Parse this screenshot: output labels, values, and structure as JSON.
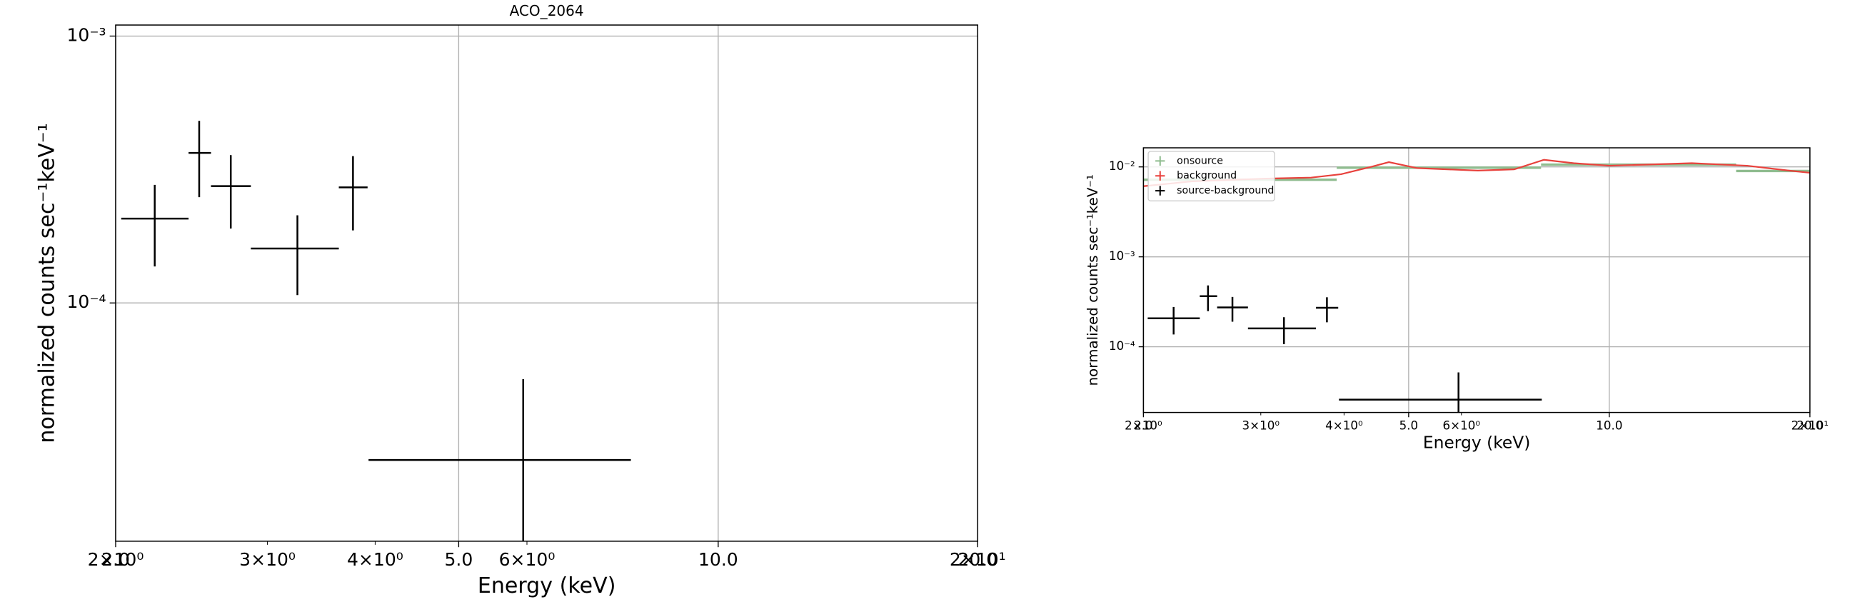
{
  "chart_data": [
    {
      "type": "errorbar",
      "title": "ACO_2064",
      "xlabel": "Energy (keV)",
      "ylabel": "normalized counts sec⁻¹keV⁻¹",
      "xscale": "log",
      "yscale": "log",
      "grid": true,
      "xlim": [
        2,
        20
      ],
      "ylim": [
        1.28e-05,
        0.0011
      ],
      "xticks": [
        {
          "value": 2,
          "label": "2.0"
        },
        {
          "value": 5,
          "label": "5.0"
        },
        {
          "value": 10,
          "label": "10.0"
        },
        {
          "value": 20,
          "label": "20.0"
        }
      ],
      "xticks_minor": [
        {
          "value": 2,
          "label": "2×10⁰"
        },
        {
          "value": 3,
          "label": "3×10⁰"
        },
        {
          "value": 4,
          "label": "4×10⁰"
        },
        {
          "value": 6,
          "label": "6×10⁰"
        },
        {
          "value": 20,
          "label": "2×10¹"
        }
      ],
      "yticks": [
        {
          "value": 0.001,
          "label": "10⁻³"
        },
        {
          "value": 0.0001,
          "label": "10⁻⁴"
        }
      ],
      "series": [
        {
          "color": "#000000",
          "x": [
            2.22,
            2.5,
            2.72,
            3.25,
            3.77,
            5.94
          ],
          "xmin": [
            2.03,
            2.43,
            2.58,
            2.87,
            3.63,
            3.93
          ],
          "xmax": [
            2.43,
            2.58,
            2.87,
            3.63,
            3.92,
            7.92
          ],
          "values": [
            0.000207,
            0.000365,
            0.000274,
            0.00016,
            0.000271,
            2.58e-05
          ],
          "yerr": [
            7e-05,
            0.000116,
            8.4e-05,
            5.3e-05,
            8.4e-05,
            2.6e-05
          ]
        }
      ]
    },
    {
      "type": "errorbar",
      "xlabel": "Energy (keV)",
      "ylabel": "normalized counts sec⁻¹keV⁻¹",
      "xscale": "log",
      "yscale": "log",
      "grid": true,
      "legend": "upper left",
      "xlim": [
        2,
        20
      ],
      "ylim": [
        1.86e-05,
        0.0163
      ],
      "xticks": [
        {
          "value": 2,
          "label": "2.0"
        },
        {
          "value": 5,
          "label": "5.0"
        },
        {
          "value": 10,
          "label": "10.0"
        },
        {
          "value": 20,
          "label": "20.0"
        }
      ],
      "xticks_minor": [
        {
          "value": 2,
          "label": "2×10⁰"
        },
        {
          "value": 3,
          "label": "3×10⁰"
        },
        {
          "value": 4,
          "label": "4×10⁰"
        },
        {
          "value": 6,
          "label": "6×10⁰"
        },
        {
          "value": 20,
          "label": "2×10¹"
        }
      ],
      "yticks": [
        {
          "value": 0.01,
          "label": "10⁻²"
        },
        {
          "value": 0.001,
          "label": "10⁻³"
        },
        {
          "value": 0.0001,
          "label": "10⁻⁴"
        }
      ],
      "series": [
        {
          "name": "onsource",
          "color": "#8fbc8f",
          "xmin": [
            2.0,
            3.9,
            7.9,
            15.5
          ],
          "xmax": [
            3.9,
            7.9,
            15.5,
            20
          ],
          "values": [
            0.0072,
            0.0098,
            0.0106,
            0.009
          ]
        },
        {
          "name": "background",
          "color": "#e8413c",
          "x": [
            2.0,
            2.36,
            3.03,
            3.57,
            3.96,
            4.39,
            4.67,
            5.15,
            6.35,
            7.2,
            7.98,
            8.84,
            10.0,
            13.3,
            16.1,
            18.6,
            20
          ],
          "values": [
            0.0061,
            0.0069,
            0.0074,
            0.0076,
            0.0083,
            0.01,
            0.0113,
            0.0097,
            0.0091,
            0.0094,
            0.012,
            0.011,
            0.0103,
            0.011,
            0.0103,
            0.0091,
            0.0086
          ]
        },
        {
          "name": "source-background",
          "color": "#000000",
          "x": [
            2.22,
            2.5,
            2.72,
            3.25,
            3.77,
            5.94
          ],
          "xmin": [
            2.03,
            2.43,
            2.58,
            2.87,
            3.63,
            3.93
          ],
          "xmax": [
            2.43,
            2.58,
            2.87,
            3.63,
            3.92,
            7.92
          ],
          "values": [
            0.000207,
            0.000365,
            0.000274,
            0.00016,
            0.000271,
            2.58e-05
          ],
          "yerr": [
            7e-05,
            0.000116,
            8.4e-05,
            5.3e-05,
            8.4e-05,
            2.6e-05
          ]
        }
      ]
    }
  ]
}
